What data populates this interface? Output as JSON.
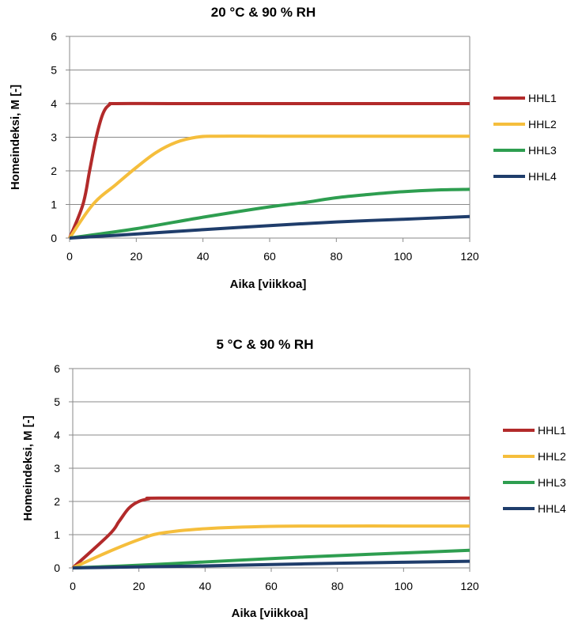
{
  "chart_data": [
    {
      "type": "line",
      "title": "20 °C & 90 % RH",
      "xlabel": "Aika [viikkoa]",
      "ylabel": "Homeindeksi, M [-]",
      "xlim": [
        0,
        120
      ],
      "ylim": [
        0,
        6
      ],
      "xticks": [
        "0",
        "20",
        "40",
        "60",
        "80",
        "100",
        "120"
      ],
      "yticks": [
        "0",
        "1",
        "2",
        "3",
        "4",
        "5",
        "6"
      ],
      "grid": "horizontal",
      "legend_position": "right",
      "series": [
        {
          "name": "HHL1",
          "color": "#b22a2a",
          "points": [
            [
              0,
              0
            ],
            [
              4,
              1
            ],
            [
              6,
              2
            ],
            [
              8,
              3
            ],
            [
              10,
              3.7
            ],
            [
              12,
              3.97
            ],
            [
              14,
              4
            ],
            [
              30,
              4
            ],
            [
              60,
              4
            ],
            [
              90,
              4
            ],
            [
              120,
              4
            ]
          ]
        },
        {
          "name": "HHL2",
          "color": "#f5be3c",
          "points": [
            [
              0,
              0
            ],
            [
              7,
              1
            ],
            [
              14,
              1.6
            ],
            [
              20,
              2.1
            ],
            [
              26,
              2.55
            ],
            [
              32,
              2.85
            ],
            [
              38,
              3.0
            ],
            [
              44,
              3.03
            ],
            [
              60,
              3.03
            ],
            [
              90,
              3.03
            ],
            [
              120,
              3.03
            ]
          ]
        },
        {
          "name": "HHL3",
          "color": "#2e9e50",
          "points": [
            [
              0,
              0
            ],
            [
              20,
              0.28
            ],
            [
              40,
              0.62
            ],
            [
              60,
              0.93
            ],
            [
              70,
              1.05
            ],
            [
              80,
              1.2
            ],
            [
              90,
              1.3
            ],
            [
              100,
              1.38
            ],
            [
              110,
              1.43
            ],
            [
              120,
              1.45
            ]
          ]
        },
        {
          "name": "HHL4",
          "color": "#1f3d6b",
          "points": [
            [
              0,
              0
            ],
            [
              20,
              0.12
            ],
            [
              40,
              0.25
            ],
            [
              60,
              0.37
            ],
            [
              80,
              0.48
            ],
            [
              100,
              0.56
            ],
            [
              120,
              0.64
            ]
          ]
        }
      ]
    },
    {
      "type": "line",
      "title": "5 °C & 90 % RH",
      "xlabel": "Aika [viikkoa]",
      "ylabel": "Homeindeksi, M [-]",
      "xlim": [
        0,
        120
      ],
      "ylim": [
        0,
        6
      ],
      "xticks": [
        "0",
        "20",
        "40",
        "60",
        "80",
        "100",
        "120"
      ],
      "yticks": [
        "0",
        "1",
        "2",
        "3",
        "4",
        "5",
        "6"
      ],
      "grid": "horizontal",
      "legend_position": "right",
      "series": [
        {
          "name": "HHL1",
          "color": "#b22a2a",
          "points": [
            [
              0,
              0
            ],
            [
              11,
              1
            ],
            [
              14,
              1.4
            ],
            [
              17,
              1.8
            ],
            [
              20,
              2.0
            ],
            [
              23,
              2.08
            ],
            [
              26,
              2.1
            ],
            [
              60,
              2.1
            ],
            [
              90,
              2.1
            ],
            [
              120,
              2.1
            ]
          ]
        },
        {
          "name": "HHL2",
          "color": "#f5be3c",
          "points": [
            [
              0,
              0
            ],
            [
              10,
              0.45
            ],
            [
              20,
              0.85
            ],
            [
              27,
              1.05
            ],
            [
              40,
              1.18
            ],
            [
              60,
              1.25
            ],
            [
              80,
              1.26
            ],
            [
              100,
              1.26
            ],
            [
              120,
              1.26
            ]
          ]
        },
        {
          "name": "HHL3",
          "color": "#2e9e50",
          "points": [
            [
              0,
              0
            ],
            [
              20,
              0.08
            ],
            [
              40,
              0.18
            ],
            [
              60,
              0.28
            ],
            [
              80,
              0.37
            ],
            [
              100,
              0.45
            ],
            [
              120,
              0.53
            ]
          ]
        },
        {
          "name": "HHL4",
          "color": "#1f3d6b",
          "points": [
            [
              0,
              0
            ],
            [
              20,
              0.03
            ],
            [
              40,
              0.06
            ],
            [
              60,
              0.1
            ],
            [
              80,
              0.14
            ],
            [
              100,
              0.17
            ],
            [
              120,
              0.2
            ]
          ]
        }
      ]
    }
  ]
}
